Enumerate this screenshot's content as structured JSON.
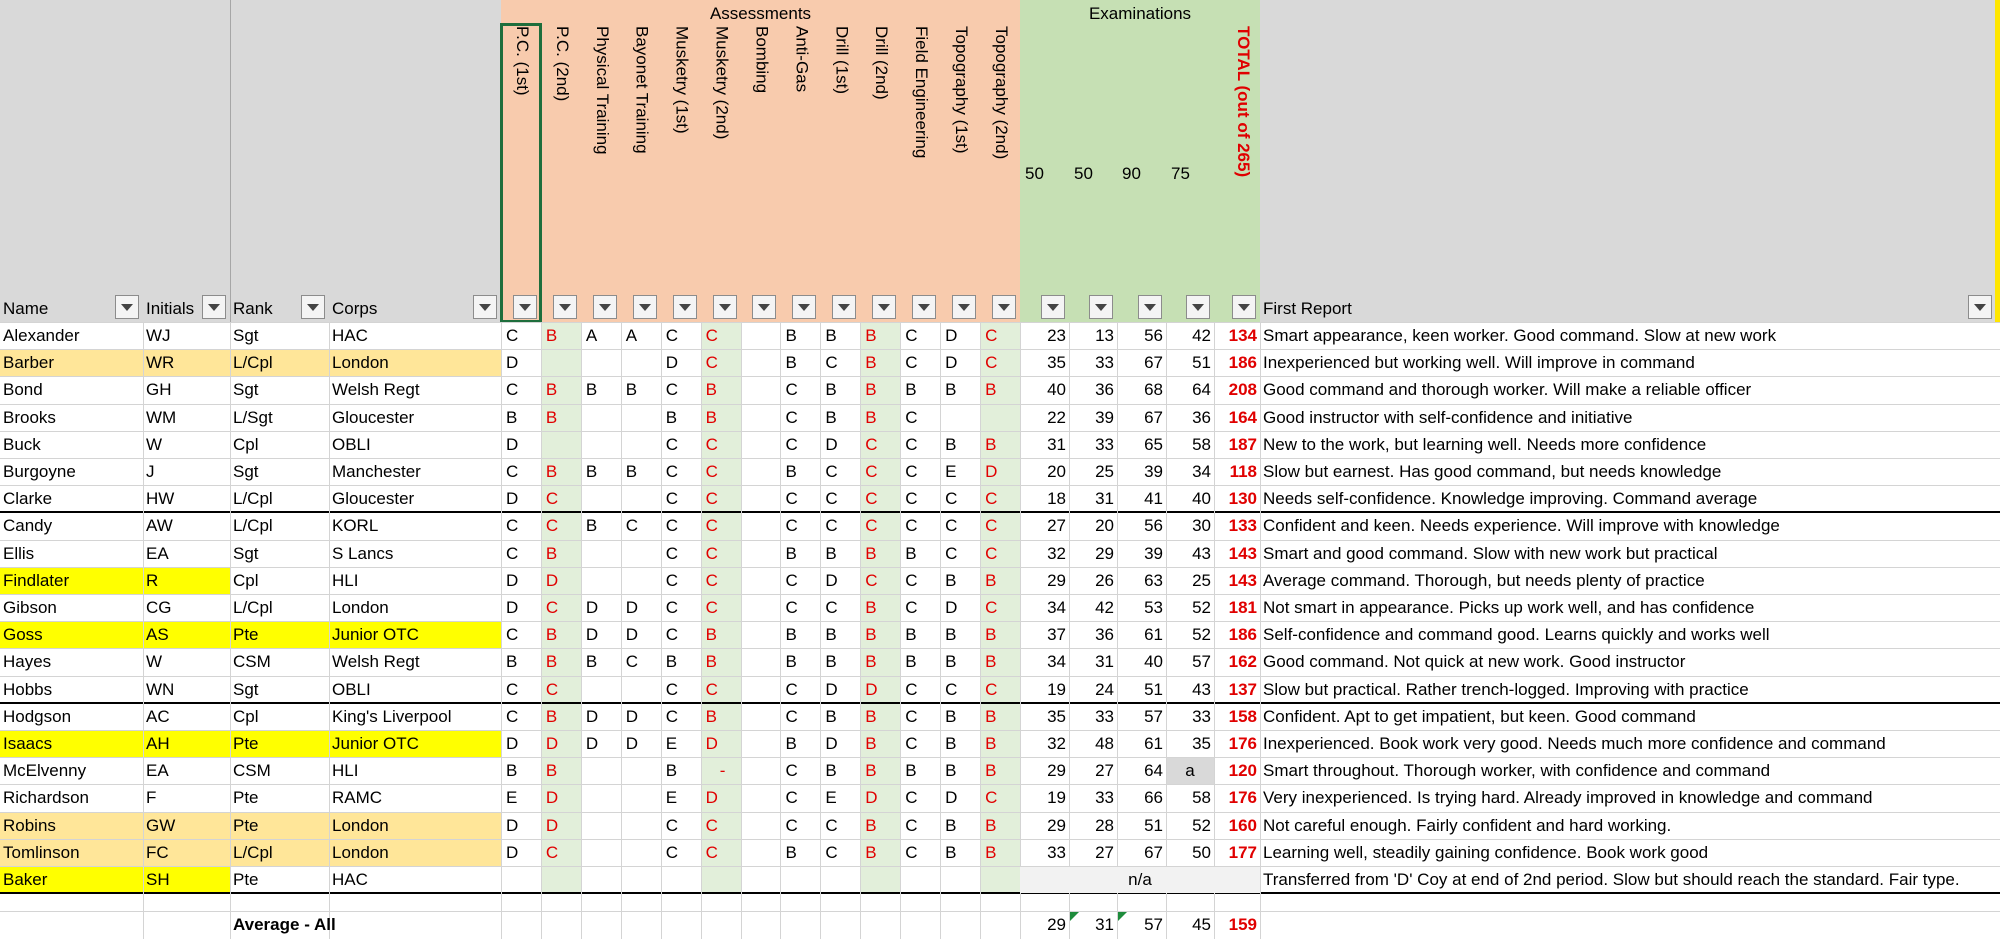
{
  "header": {
    "group_assessments": "Assessments",
    "group_examinations": "Examinations"
  },
  "columns": {
    "name": "Name",
    "initials": "Initials",
    "rank": "Rank",
    "corps": "Corps",
    "assessments": [
      "P.C. (1st)",
      "P.C. (2nd)",
      "Physical Training",
      "Bayonet Training",
      "Musketry (1st)",
      "Musketry (2nd)",
      "Bombing",
      "Anti-Gas",
      "Drill (1st)",
      "Drill (2nd)",
      "Field Engineering",
      "Topography (1st)",
      "Topography (2nd)"
    ],
    "exam_max": [
      50,
      50,
      90,
      75
    ],
    "total": "TOTAL (out of 265)",
    "report": "First Report"
  },
  "rows": [
    {
      "name": "Alexander",
      "initials": "WJ",
      "rank": "Sgt",
      "corps": "HAC",
      "grades": [
        "C",
        "B",
        "A",
        "A",
        "C",
        "C",
        null,
        "B",
        "B",
        "B",
        "C",
        "D",
        "C"
      ],
      "exams": [
        23,
        13,
        56,
        42
      ],
      "total": 134,
      "report": "Smart appearance, keen worker. Good command. Slow at new work"
    },
    {
      "name": "Barber",
      "initials": "WR",
      "rank": "L/Cpl",
      "corps": "London",
      "grades": [
        "D",
        null,
        null,
        null,
        "D",
        "C",
        null,
        "B",
        "C",
        "B",
        "C",
        "D",
        "C"
      ],
      "exams": [
        35,
        33,
        67,
        51
      ],
      "total": 186,
      "report": "Inexperienced but working well. Will improve in command"
    },
    {
      "name": "Bond",
      "initials": "GH",
      "rank": "Sgt",
      "corps": "Welsh Regt",
      "grades": [
        "C",
        "B",
        "B",
        "B",
        "C",
        "B",
        null,
        "C",
        "B",
        "B",
        "B",
        "B",
        "B"
      ],
      "exams": [
        40,
        36,
        68,
        64
      ],
      "total": 208,
      "report": "Good command and thorough worker. Will make a reliable officer"
    },
    {
      "name": "Brooks",
      "initials": "WM",
      "rank": "L/Sgt",
      "corps": "Gloucester",
      "grades": [
        "B",
        "B",
        null,
        null,
        "B",
        "B",
        null,
        "C",
        "B",
        "B",
        "C",
        null,
        null
      ],
      "exams": [
        22,
        39,
        67,
        36
      ],
      "total": 164,
      "report": "Good instructor with self-confidence and initiative"
    },
    {
      "name": "Buck",
      "initials": "W",
      "rank": "Cpl",
      "corps": "OBLI",
      "grades": [
        "D",
        null,
        null,
        null,
        "C",
        "C",
        null,
        "C",
        "D",
        "C",
        "C",
        "B",
        "B"
      ],
      "exams": [
        31,
        33,
        65,
        58
      ],
      "total": 187,
      "report": "New to the work, but learning well.  Needs more confidence"
    },
    {
      "name": "Burgoyne",
      "initials": "J",
      "rank": "Sgt",
      "corps": "Manchester",
      "grades": [
        "C",
        "B",
        "B",
        "B",
        "C",
        "C",
        null,
        "B",
        "C",
        "C",
        "C",
        "E",
        "D"
      ],
      "exams": [
        20,
        25,
        39,
        34
      ],
      "total": 118,
      "report": "Slow but earnest. Has good command, but needs knowledge"
    },
    {
      "name": "Clarke",
      "initials": "HW",
      "rank": "L/Cpl",
      "corps": "Gloucester",
      "grades": [
        "D",
        "C",
        null,
        null,
        "C",
        "C",
        null,
        "C",
        "C",
        "C",
        "C",
        "C",
        "C"
      ],
      "exams": [
        18,
        31,
        41,
        40
      ],
      "total": 130,
      "report": "Needs self-confidence. Knowledge improving. Command average"
    },
    {
      "name": "Candy",
      "initials": "AW",
      "rank": "L/Cpl",
      "corps": "KORL",
      "grades": [
        "C",
        "C",
        "B",
        "C",
        "C",
        "C",
        null,
        "C",
        "C",
        "C",
        "C",
        "C",
        "C"
      ],
      "exams": [
        27,
        20,
        56,
        30
      ],
      "total": 133,
      "report": "Confident and keen. Needs experience. Will improve with knowledge"
    },
    {
      "name": "Ellis",
      "initials": "EA",
      "rank": "Sgt",
      "corps": "S Lancs",
      "grades": [
        "C",
        "B",
        null,
        null,
        "C",
        "C",
        null,
        "B",
        "B",
        "B",
        "B",
        "C",
        "C"
      ],
      "exams": [
        32,
        29,
        39,
        43
      ],
      "total": 143,
      "report": "Smart and good command. Slow with new work but practical"
    },
    {
      "name": "Findlater",
      "initials": "R",
      "rank": "Cpl",
      "corps": "HLI",
      "grades": [
        "D",
        "D",
        null,
        null,
        "C",
        "C",
        null,
        "C",
        "D",
        "C",
        "C",
        "B",
        "B"
      ],
      "exams": [
        29,
        26,
        63,
        25
      ],
      "total": 143,
      "report": "Average command. Thorough, but needs plenty of practice"
    },
    {
      "name": "Gibson",
      "initials": "CG",
      "rank": "L/Cpl",
      "corps": "London",
      "grades": [
        "D",
        "C",
        "D",
        "D",
        "C",
        "C",
        null,
        "C",
        "C",
        "B",
        "C",
        "D",
        "C"
      ],
      "exams": [
        34,
        42,
        53,
        52
      ],
      "total": 181,
      "report": "Not smart in appearance. Picks up work well, and has confidence"
    },
    {
      "name": "Goss",
      "initials": "AS",
      "rank": "Pte",
      "corps": "Junior OTC",
      "grades": [
        "C",
        "B",
        "D",
        "D",
        "C",
        "B",
        null,
        "B",
        "B",
        "B",
        "B",
        "B",
        "B"
      ],
      "exams": [
        37,
        36,
        61,
        52
      ],
      "total": 186,
      "report": "Self-confidence and command good. Learns quickly and works well"
    },
    {
      "name": "Hayes",
      "initials": "W",
      "rank": "CSM",
      "corps": "Welsh Regt",
      "grades": [
        "B",
        "B",
        "B",
        "C",
        "B",
        "B",
        null,
        "B",
        "B",
        "B",
        "B",
        "B",
        "B"
      ],
      "exams": [
        34,
        31,
        40,
        57
      ],
      "total": 162,
      "report": "Good command. Not quick at new work.  Good instructor"
    },
    {
      "name": "Hobbs",
      "initials": "WN",
      "rank": "Sgt",
      "corps": "OBLI",
      "grades": [
        "C",
        "C",
        null,
        null,
        "C",
        "C",
        null,
        "C",
        "D",
        "D",
        "C",
        "C",
        "C"
      ],
      "exams": [
        19,
        24,
        51,
        43
      ],
      "total": 137,
      "report": "Slow but practical. Rather trench-logged. Improving with practice"
    },
    {
      "name": "Hodgson",
      "initials": "AC",
      "rank": "Cpl",
      "corps": "King's Liverpool",
      "grades": [
        "C",
        "B",
        "D",
        "D",
        "C",
        "B",
        null,
        "C",
        "B",
        "B",
        "C",
        "B",
        "B"
      ],
      "exams": [
        35,
        33,
        57,
        33
      ],
      "total": 158,
      "report": "Confident. Apt to get impatient, but keen. Good command"
    },
    {
      "name": "Isaacs",
      "initials": "AH",
      "rank": "Pte",
      "corps": "Junior OTC",
      "grades": [
        "D",
        "D",
        "D",
        "D",
        "E",
        "D",
        null,
        "B",
        "D",
        "B",
        "C",
        "B",
        "B"
      ],
      "exams": [
        32,
        48,
        61,
        35
      ],
      "total": 176,
      "report": "Inexperienced. Book work very good. Needs much more confidence and command"
    },
    {
      "name": "McElvenny",
      "initials": "EA",
      "rank": "CSM",
      "corps": "HLI",
      "grades": [
        "B",
        "B",
        null,
        null,
        "B",
        "-",
        null,
        "C",
        "B",
        "B",
        "B",
        "B",
        "B"
      ],
      "exams": [
        29,
        27,
        64,
        "a"
      ],
      "total": 120,
      "report": "Smart throughout. Thorough worker, with confidence and command"
    },
    {
      "name": "Richardson",
      "initials": "F",
      "rank": "Pte",
      "corps": "RAMC",
      "grades": [
        "E",
        "D",
        null,
        null,
        "E",
        "D",
        null,
        "C",
        "E",
        "D",
        "C",
        "D",
        "C"
      ],
      "exams": [
        19,
        33,
        66,
        58
      ],
      "total": 176,
      "report": "Very inexperienced. Is trying hard. Already improved in knowledge and command"
    },
    {
      "name": "Robins",
      "initials": "GW",
      "rank": "Pte",
      "corps": "London",
      "grades": [
        "D",
        "D",
        null,
        null,
        "C",
        "C",
        null,
        "C",
        "C",
        "B",
        "C",
        "B",
        "B"
      ],
      "exams": [
        29,
        28,
        51,
        52
      ],
      "total": 160,
      "report": "Not careful enough.  Fairly confident and hard working."
    },
    {
      "name": "Tomlinson",
      "initials": "FC",
      "rank": "L/Cpl",
      "corps": "London",
      "grades": [
        "D",
        "C",
        null,
        null,
        "C",
        "C",
        null,
        "B",
        "C",
        "B",
        "C",
        "B",
        "B"
      ],
      "exams": [
        33,
        27,
        67,
        50
      ],
      "total": 177,
      "report": "Learning well, steadily gaining confidence. Book work good"
    },
    {
      "name": "Baker",
      "initials": "SH",
      "rank": "Pte",
      "corps": "HAC",
      "grades": [
        null,
        null,
        null,
        null,
        null,
        null,
        null,
        null,
        null,
        null,
        null,
        null,
        null
      ],
      "exams": "n/a",
      "total": null,
      "report": "Transferred from 'D' Coy at end of 2nd period. Slow but should reach the standard. Fair type."
    }
  ],
  "average": {
    "label": "Average - All",
    "exams": [
      29,
      31,
      57,
      45
    ],
    "total": 159
  }
}
